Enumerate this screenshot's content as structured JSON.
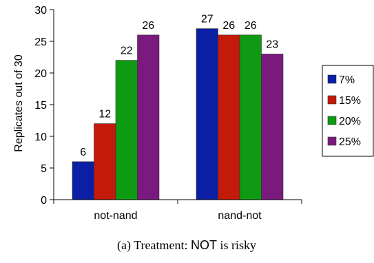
{
  "chart_data": {
    "type": "bar",
    "categories": [
      "not-nand",
      "nand-not"
    ],
    "series": [
      {
        "name": "7%",
        "values": [
          6,
          27
        ],
        "color": "#0a1fa3"
      },
      {
        "name": "15%",
        "values": [
          12,
          26
        ],
        "color": "#c41a0a"
      },
      {
        "name": "20%",
        "values": [
          22,
          26
        ],
        "color": "#0e9a12"
      },
      {
        "name": "25%",
        "values": [
          26,
          23
        ],
        "color": "#7a1a7e"
      }
    ],
    "ylabel": "Replicates out of 30",
    "xlabel": "",
    "ylim": [
      0,
      30
    ],
    "yticks": [
      0,
      5,
      10,
      15,
      20,
      25,
      30
    ],
    "legend_position": "right",
    "grid": false
  },
  "caption": {
    "prefix": "(a) Treatment: ",
    "keyword": "NOT",
    "suffix": " is risky"
  }
}
